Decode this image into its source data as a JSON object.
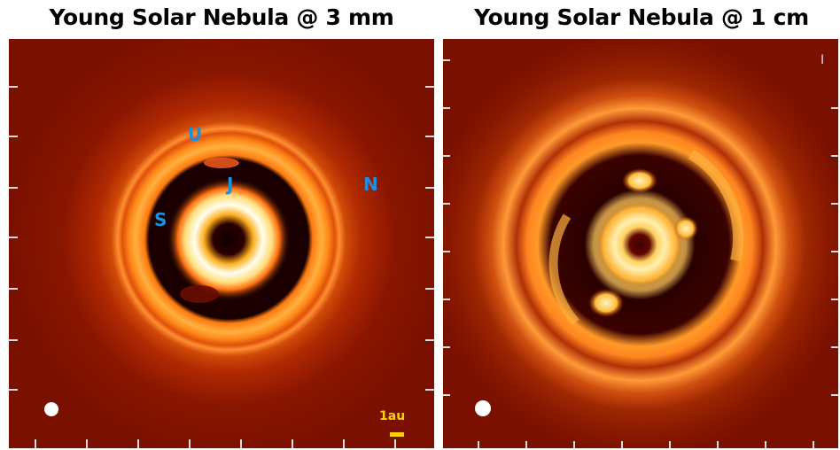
{
  "panels": [
    {
      "title": "Young Solar Nebula @ 3 mm",
      "planet_labels": [
        "U",
        "J",
        "N",
        "S"
      ],
      "scale_bar_label": "1au"
    },
    {
      "title": "Young Solar Nebula @ 1 cm",
      "corner_mark": "I"
    }
  ],
  "colors": {
    "background_dust": "#7a1000",
    "ring_bright": "#ffffe0",
    "ring_orange": "#ff9a1e",
    "gap_dark": "#1a0000",
    "label_blue": "#1e8fe0",
    "scale_yellow": "#ffd400"
  }
}
